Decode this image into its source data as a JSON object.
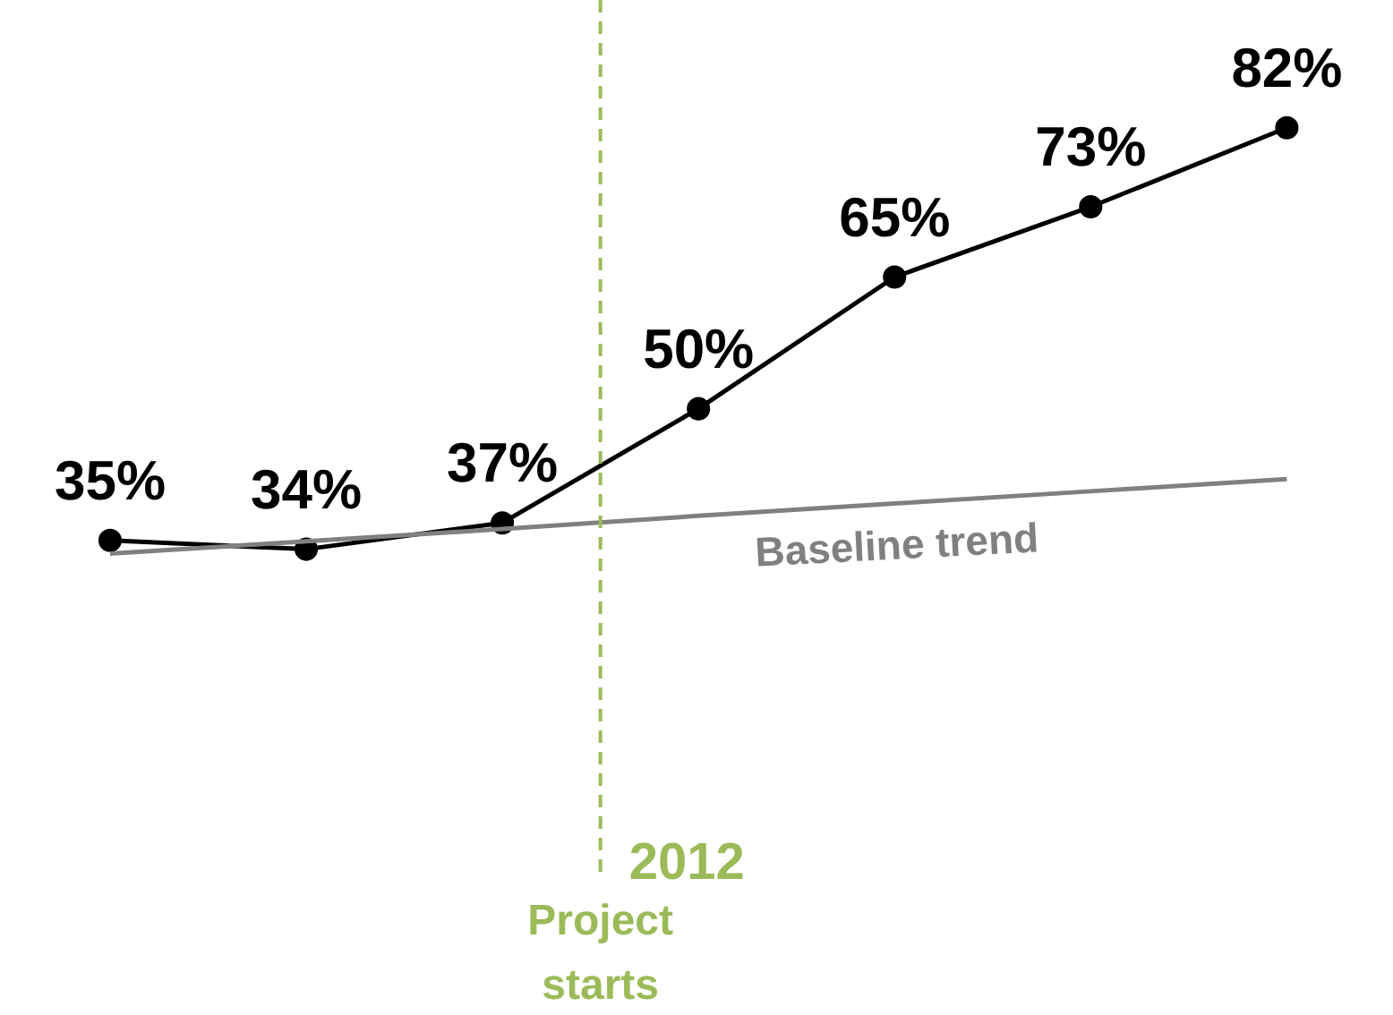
{
  "chart_data": {
    "type": "line",
    "categories": [
      null,
      null,
      null,
      null,
      null,
      null,
      null
    ],
    "series": [
      {
        "color": "#000000",
        "values": [
          35,
          34,
          37,
          50,
          65,
          73,
          82
        ],
        "value_labels": [
          "35%",
          "34%",
          "37%",
          "50%",
          "65%",
          "73%",
          "82%"
        ],
        "marker": "circle"
      },
      {
        "name": "Baseline trend",
        "color": "#808080",
        "values": [
          33.5,
          34.9,
          36.3,
          37.8,
          39.2,
          40.6,
          42
        ],
        "marker": "none"
      }
    ],
    "annotations": [
      "2012",
      "Project starts"
    ]
  }
}
